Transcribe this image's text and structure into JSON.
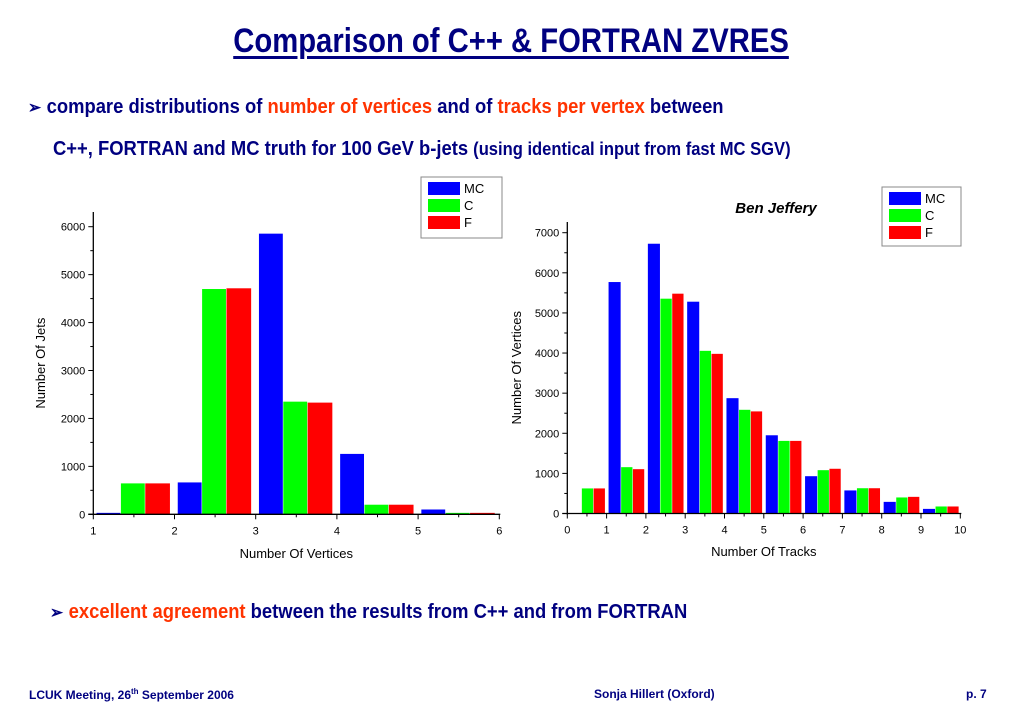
{
  "slide": {
    "title": "Comparison of C++ & FORTRAN ZVRES",
    "bullet1": {
      "arrow": "➢",
      "parts": [
        "compare distributions of ",
        "number of vertices",
        " and of ",
        "tracks per vertex",
        " between"
      ]
    },
    "bullet1_cont": {
      "main": "C++, FORTRAN and MC truth for 100 GeV b-jets ",
      "note": "(using identical input from fast MC SGV)"
    },
    "bullet2": {
      "arrow": "➢",
      "highlight": "excellent agreement",
      "rest": " between the results from C++ and from FORTRAN"
    },
    "footer": {
      "left_pre": "LCUK Meeting, 26",
      "left_sup": "th",
      "left_post": " September 2006",
      "center": "Sonja Hillert (Oxford)",
      "right": "p. 7"
    }
  },
  "colors": {
    "text": "#000080",
    "highlight": "#ff3300",
    "MC": "#0000ff",
    "C": "#00ff00",
    "F": "#ff0000"
  },
  "chart_data": [
    {
      "type": "bar",
      "title": "",
      "xlabel": "Number Of Vertices",
      "ylabel": "Number Of Jets",
      "xlim": [
        1,
        6
      ],
      "ylim": [
        0,
        6000
      ],
      "xticks": [
        "1",
        "2",
        "3",
        "4",
        "5",
        "6"
      ],
      "yticks": [
        "0",
        "1000",
        "2000",
        "3000",
        "4000",
        "5000",
        "6000"
      ],
      "bins": [
        1,
        2,
        3,
        4,
        5
      ],
      "legend": [
        "MC",
        "C",
        "F"
      ],
      "legend_position": "top-right",
      "series": [
        {
          "name": "MC",
          "values": [
            30,
            665,
            5855,
            1260,
            100
          ]
        },
        {
          "name": "C",
          "values": [
            645,
            4700,
            2350,
            200,
            30
          ]
        },
        {
          "name": "F",
          "values": [
            645,
            4715,
            2330,
            200,
            30
          ]
        }
      ]
    },
    {
      "type": "bar",
      "title": "Ben Jeffery",
      "xlabel": "Number Of Tracks",
      "ylabel": "Number Of Vertices",
      "xlim": [
        0,
        10
      ],
      "ylim": [
        0,
        7000
      ],
      "xticks": [
        "0",
        "1",
        "2",
        "3",
        "4",
        "5",
        "6",
        "7",
        "8",
        "9",
        "10"
      ],
      "yticks": [
        "0",
        "1000",
        "2000",
        "3000",
        "4000",
        "5000",
        "6000",
        "7000"
      ],
      "bins": [
        0,
        1,
        2,
        3,
        4,
        5,
        6,
        7,
        8,
        9
      ],
      "legend": [
        "MC",
        "C",
        "F"
      ],
      "legend_position": "top-right",
      "series": [
        {
          "name": "MC",
          "values": [
            0,
            5770,
            6725,
            5280,
            2875,
            1950,
            930,
            575,
            290,
            115
          ]
        },
        {
          "name": "C",
          "values": [
            625,
            1155,
            5355,
            4055,
            2585,
            1810,
            1080,
            630,
            400,
            175
          ]
        },
        {
          "name": "F",
          "values": [
            625,
            1105,
            5480,
            3980,
            2545,
            1810,
            1115,
            630,
            415,
            175
          ]
        }
      ]
    }
  ]
}
